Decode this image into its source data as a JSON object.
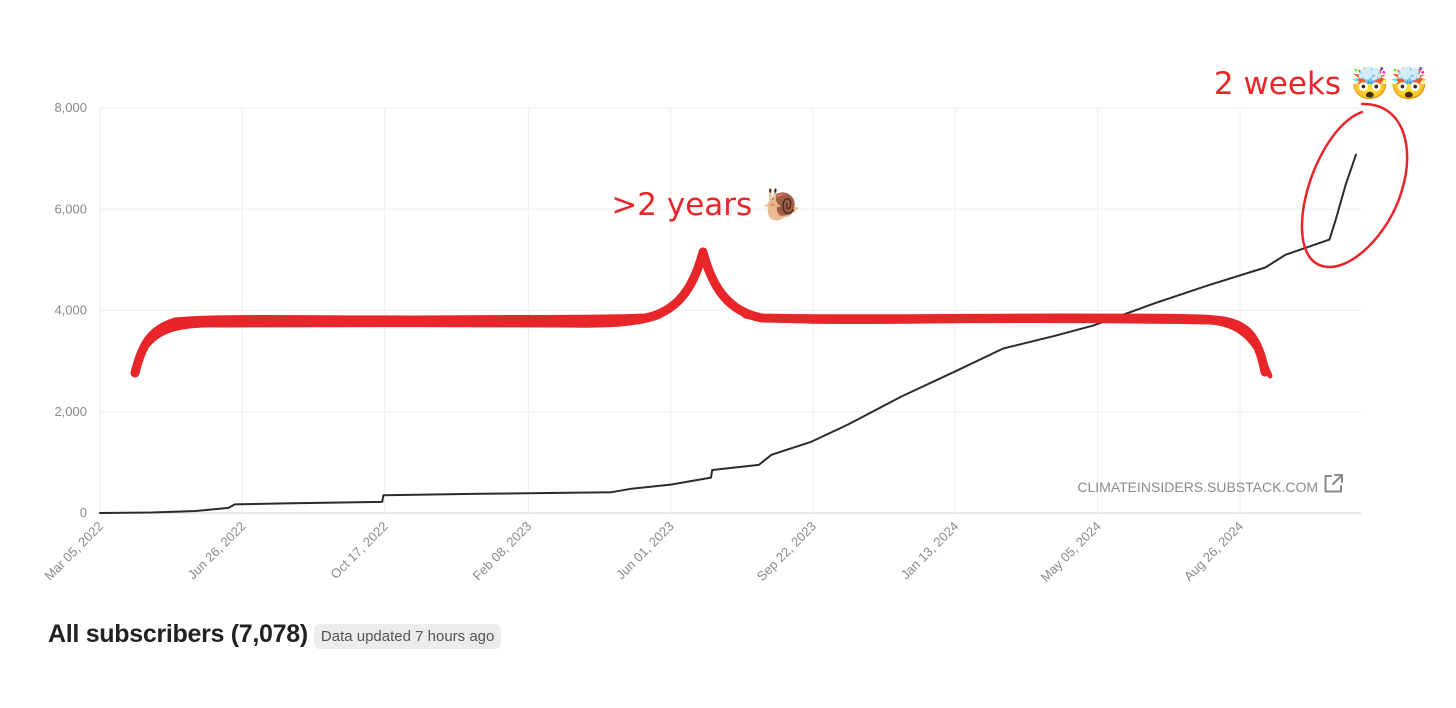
{
  "chart_data": {
    "type": "line",
    "ylim": [
      0,
      8000
    ],
    "yticks": [
      0,
      2000,
      4000,
      6000,
      8000
    ],
    "ytick_labels": [
      "0",
      "2,000",
      "4,000",
      "6,000",
      "8,000"
    ],
    "xlim": [
      "2022-03-05",
      "2024-11-30"
    ],
    "xticks": [
      "2022-03-05",
      "2022-06-26",
      "2022-10-17",
      "2023-02-08",
      "2023-06-01",
      "2023-09-22",
      "2024-01-13",
      "2024-05-05",
      "2024-08-26"
    ],
    "xtick_labels": [
      "Mar 05, 2022",
      "Jun 26, 2022",
      "Oct 17, 2022",
      "Feb 08, 2023",
      "Jun 01, 2023",
      "Sep 22, 2023",
      "Jan 13, 2024",
      "May 05, 2024",
      "Aug 26, 2024"
    ],
    "grid": true,
    "series": [
      {
        "color": "#2b2b2b",
        "points": [
          [
            "2022-03-05",
            0
          ],
          [
            "2022-04-15",
            10
          ],
          [
            "2022-05-20",
            40
          ],
          [
            "2022-06-15",
            100
          ],
          [
            "2022-06-20",
            170
          ],
          [
            "2022-07-30",
            190
          ],
          [
            "2022-10-15",
            220
          ],
          [
            "2022-10-16",
            350
          ],
          [
            "2023-01-01",
            380
          ],
          [
            "2023-04-15",
            410
          ],
          [
            "2023-05-01",
            480
          ],
          [
            "2023-06-01",
            560
          ],
          [
            "2023-07-03",
            700
          ],
          [
            "2023-07-04",
            850
          ],
          [
            "2023-08-10",
            950
          ],
          [
            "2023-08-20",
            1150
          ],
          [
            "2023-09-20",
            1400
          ],
          [
            "2023-10-20",
            1750
          ],
          [
            "2023-12-01",
            2300
          ],
          [
            "2024-01-13",
            2800
          ],
          [
            "2024-02-20",
            3250
          ],
          [
            "2024-04-01",
            3500
          ],
          [
            "2024-05-01",
            3700
          ],
          [
            "2024-06-20",
            4150
          ],
          [
            "2024-08-01",
            4500
          ],
          [
            "2024-09-15",
            4850
          ],
          [
            "2024-10-01",
            5100
          ],
          [
            "2024-11-05",
            5400
          ],
          [
            "2024-11-10",
            5800
          ],
          [
            "2024-11-18",
            6500
          ],
          [
            "2024-11-26",
            7078
          ]
        ]
      }
    ],
    "annotations": [
      {
        "text": ">2 years 🐌"
      },
      {
        "text": "2 weeks 🤯🤯"
      }
    ]
  },
  "watermark": {
    "text": "CLIMATEINSIDERS.SUBSTACK.COM",
    "icon": "external-link-icon"
  },
  "footer": {
    "title": "All subscribers (7,078)",
    "badge": "Data updated 7 hours ago"
  },
  "colors": {
    "line": "#2b2b2b",
    "annotation": "#e8262a",
    "grid": "#eeeeee"
  }
}
